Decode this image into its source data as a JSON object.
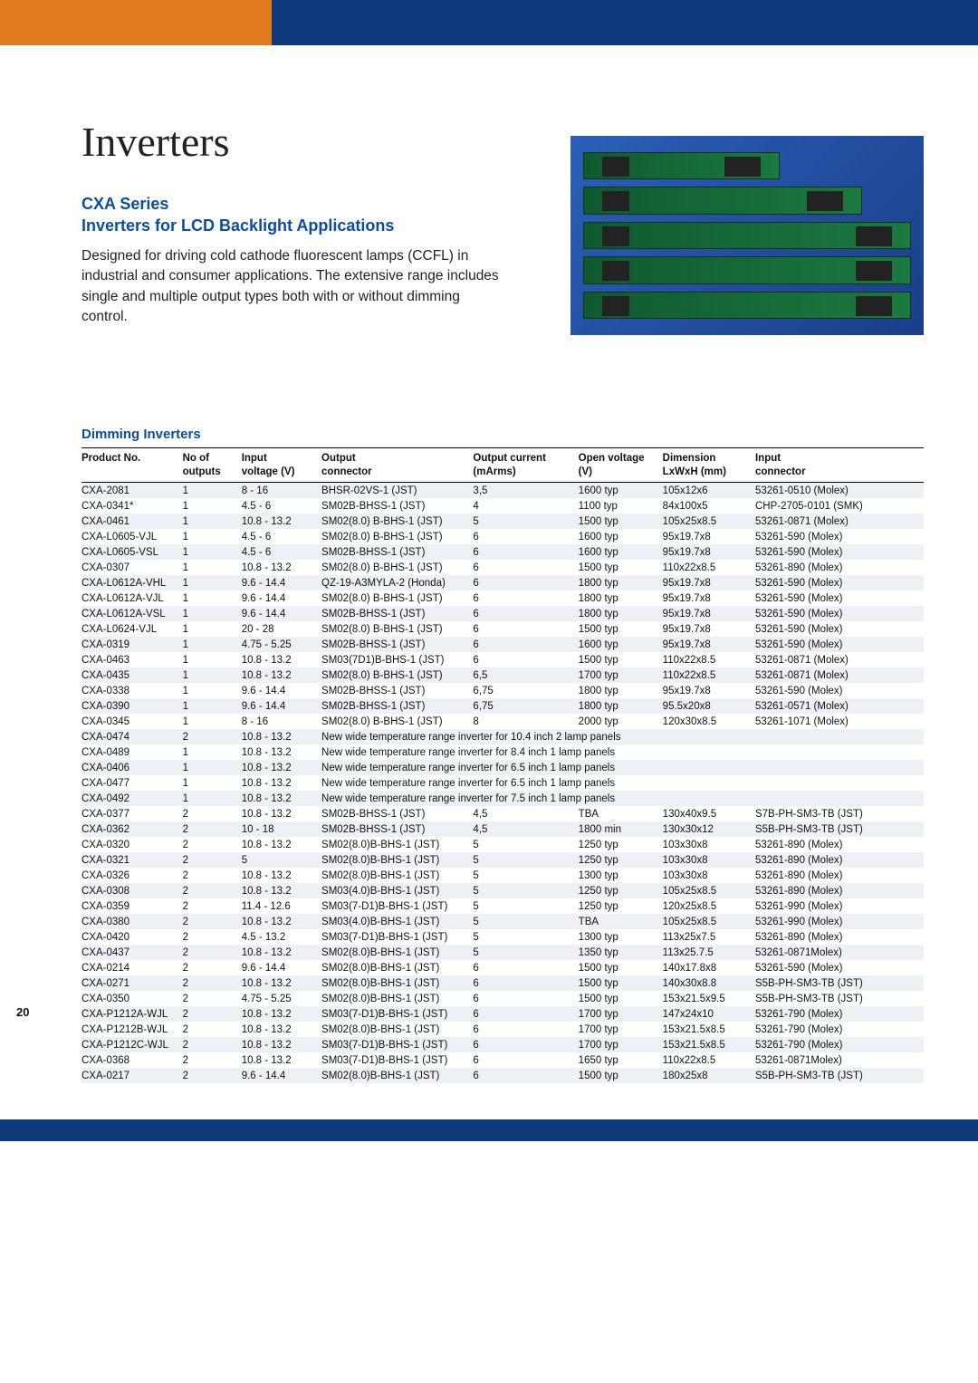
{
  "page_number": "20",
  "title": "Inverters",
  "subtitle_line1": "CXA Series",
  "subtitle_line2": "Inverters for LCD Backlight Applications",
  "description": "Designed for driving cold cathode fluorescent lamps (CCFL) in industrial and consumer applications. The extensive range includes single and multiple output types both with or without dimming control.",
  "section_heading": "Dimming Inverters",
  "colors": {
    "accent_blue": "#0a4da3",
    "bar_navy": "#0c3a7a",
    "bar_orange": "#e07a1f",
    "row_stripe": "#edf1f6"
  },
  "table": {
    "header": [
      {
        "l1": "Product No.",
        "l2": ""
      },
      {
        "l1": "No of",
        "l2": "outputs"
      },
      {
        "l1": "Input",
        "l2": "voltage (V)"
      },
      {
        "l1": "Output",
        "l2": "connector"
      },
      {
        "l1": "Output current",
        "l2": "(mArms)"
      },
      {
        "l1": "Open voltage",
        "l2": "(V)"
      },
      {
        "l1": "Dimension",
        "l2": "LxWxH (mm)"
      },
      {
        "l1": "Input",
        "l2": "connector"
      }
    ],
    "rows": [
      [
        "CXA-2081",
        "1",
        "8 - 16",
        "BHSR-02VS-1 (JST)",
        "3,5",
        "1600 typ",
        "105x12x6",
        "53261-0510 (Molex)"
      ],
      [
        "CXA-0341*",
        "1",
        "4.5 - 6",
        "SM02B-BHSS-1 (JST)",
        "4",
        "1100 typ",
        "84x100x5",
        "CHP-2705-0101 (SMK)"
      ],
      [
        "CXA-0461",
        "1",
        "10.8 - 13.2",
        "SM02(8.0) B-BHS-1 (JST)",
        "5",
        "1500 typ",
        "105x25x8.5",
        "53261-0871 (Molex)"
      ],
      [
        "CXA-L0605-VJL",
        "1",
        "4.5 - 6",
        "SM02(8.0) B-BHS-1 (JST)",
        "6",
        "1600 typ",
        "95x19.7x8",
        "53261-590 (Molex)"
      ],
      [
        "CXA-L0605-VSL",
        "1",
        "4.5 - 6",
        "SM02B-BHSS-1 (JST)",
        "6",
        "1600 typ",
        "95x19.7x8",
        "53261-590 (Molex)"
      ],
      [
        "CXA-0307",
        "1",
        "10.8 - 13.2",
        "SM02(8.0) B-BHS-1 (JST)",
        "6",
        "1500 typ",
        "110x22x8.5",
        "53261-890 (Molex)"
      ],
      [
        "CXA-L0612A-VHL",
        "1",
        "9.6 - 14.4",
        "QZ-19-A3MYLA-2 (Honda)",
        "6",
        "1800 typ",
        "95x19.7x8",
        "53261-590 (Molex)"
      ],
      [
        "CXA-L0612A-VJL",
        "1",
        "9.6 - 14.4",
        "SM02(8.0) B-BHS-1 (JST)",
        "6",
        "1800 typ",
        "95x19.7x8",
        "53261-590 (Molex)"
      ],
      [
        "CXA-L0612A-VSL",
        "1",
        "9.6 - 14.4",
        "SM02B-BHSS-1 (JST)",
        "6",
        "1800 typ",
        "95x19.7x8",
        "53261-590 (Molex)"
      ],
      [
        "CXA-L0624-VJL",
        "1",
        "20 - 28",
        "SM02(8.0) B-BHS-1 (JST)",
        "6",
        "1500 typ",
        "95x19.7x8",
        "53261-590 (Molex)"
      ],
      [
        "CXA-0319",
        "1",
        "4.75 - 5.25",
        "SM02B-BHSS-1 (JST)",
        "6",
        "1600 typ",
        "95x19.7x8",
        "53261-590 (Molex)"
      ],
      [
        "CXA-0463",
        "1",
        "10.8 - 13.2",
        "SM03(7D1)B-BHS-1 (JST)",
        "6",
        "1500 typ",
        "110x22x8.5",
        "53261-0871 (Molex)"
      ],
      [
        "CXA-0435",
        "1",
        "10.8 - 13.2",
        "SM02(8.0) B-BHS-1 (JST)",
        "6,5",
        "1700 typ",
        "110x22x8.5",
        "53261-0871 (Molex)"
      ],
      [
        "CXA-0338",
        "1",
        "9.6 - 14.4",
        "SM02B-BHSS-1 (JST)",
        "6,75",
        "1800 typ",
        "95x19.7x8",
        "53261-590 (Molex)"
      ],
      [
        "CXA-0390",
        "1",
        "9.6 - 14.4",
        "SM02B-BHSS-1 (JST)",
        "6,75",
        "1800 typ",
        "95.5x20x8",
        "53261-0571 (Molex)"
      ],
      [
        "CXA-0345",
        "1",
        "8 - 16",
        "SM02(8.0) B-BHS-1 (JST)",
        "8",
        "2000 typ",
        "120x30x8.5",
        "53261-1071 (Molex)"
      ],
      [
        "CXA-0474",
        "2",
        "10.8 - 13.2",
        {
          "note": "New wide temperature range inverter for 10.4 inch 2 lamp panels"
        }
      ],
      [
        "CXA-0489",
        "1",
        "10.8 - 13.2",
        {
          "note": "New wide temperature range inverter for 8.4 inch 1 lamp panels"
        }
      ],
      [
        "CXA-0406",
        "1",
        "10.8 - 13.2",
        {
          "note": "New wide temperature range inverter for 6.5 inch 1 lamp panels"
        }
      ],
      [
        "CXA-0477",
        "1",
        "10.8 - 13.2",
        {
          "note": "New wide temperature range inverter for 6.5 inch 1 lamp panels"
        }
      ],
      [
        "CXA-0492",
        "1",
        "10.8 - 13.2",
        {
          "note": "New wide temperature range inverter for 7.5 inch 1 lamp panels"
        }
      ],
      [
        "CXA-0377",
        "2",
        "10.8 - 13.2",
        "SM02B-BHSS-1 (JST)",
        "4,5",
        "TBA",
        "130x40x9.5",
        "S7B-PH-SM3-TB (JST)"
      ],
      [
        "CXA-0362",
        "2",
        "10 - 18",
        "SM02B-BHSS-1 (JST)",
        "4,5",
        "1800 min",
        "130x30x12",
        "S5B-PH-SM3-TB (JST)"
      ],
      [
        "CXA-0320",
        "2",
        "10.8 - 13.2",
        "SM02(8.0)B-BHS-1 (JST)",
        "5",
        "1250 typ",
        "103x30x8",
        "53261-890 (Molex)"
      ],
      [
        "CXA-0321",
        "2",
        "5",
        "SM02(8.0)B-BHS-1 (JST)",
        "5",
        "1250 typ",
        "103x30x8",
        "53261-890 (Molex)"
      ],
      [
        "CXA-0326",
        "2",
        "10.8 - 13.2",
        "SM02(8.0)B-BHS-1 (JST)",
        "5",
        "1300 typ",
        "103x30x8",
        "53261-890 (Molex)"
      ],
      [
        "CXA-0308",
        "2",
        "10.8 - 13.2",
        "SM03(4.0)B-BHS-1 (JST)",
        "5",
        "1250 typ",
        "105x25x8.5",
        "53261-890 (Molex)"
      ],
      [
        "CXA-0359",
        "2",
        "11.4 - 12.6",
        "SM03(7-D1)B-BHS-1 (JST)",
        "5",
        "1250 typ",
        "120x25x8.5",
        "53261-990 (Molex)"
      ],
      [
        "CXA-0380",
        "2",
        "10.8 - 13.2",
        "SM03(4.0)B-BHS-1 (JST)",
        "5",
        "TBA",
        "105x25x8.5",
        "53261-990 (Molex)"
      ],
      [
        "CXA-0420",
        "2",
        "4.5 - 13.2",
        "SM03(7-D1)B-BHS-1 (JST)",
        "5",
        "1300 typ",
        "113x25x7.5",
        "53261-890 (Molex)"
      ],
      [
        "CXA-0437",
        "2",
        "10.8 - 13.2",
        "SM02(8.0)B-BHS-1 (JST)",
        "5",
        "1350 typ",
        "113x25.7.5",
        "53261-0871Molex)"
      ],
      [
        "CXA-0214",
        "2",
        "9.6 - 14.4",
        "SM02(8.0)B-BHS-1 (JST)",
        "6",
        "1500 typ",
        "140x17.8x8",
        "53261-590 (Molex)"
      ],
      [
        "CXA-0271",
        "2",
        "10.8 - 13.2",
        "SM02(8.0)B-BHS-1 (JST)",
        "6",
        "1500 typ",
        "140x30x8.8",
        "S5B-PH-SM3-TB (JST)"
      ],
      [
        "CXA-0350",
        "2",
        "4.75 - 5.25",
        "SM02(8.0)B-BHS-1 (JST)",
        "6",
        "1500 typ",
        "153x21.5x9.5",
        "S5B-PH-SM3-TB (JST)"
      ],
      [
        "CXA-P1212A-WJL",
        "2",
        "10.8 - 13.2",
        "SM03(7-D1)B-BHS-1 (JST)",
        "6",
        "1700 typ",
        "147x24x10",
        "53261-790 (Molex)"
      ],
      [
        "CXA-P1212B-WJL",
        "2",
        "10.8 - 13.2",
        "SM02(8.0)B-BHS-1 (JST)",
        "6",
        "1700 typ",
        "153x21.5x8.5",
        "53261-790 (Molex)"
      ],
      [
        "CXA-P1212C-WJL",
        "2",
        "10.8 - 13.2",
        "SM03(7-D1)B-BHS-1 (JST)",
        "6",
        "1700 typ",
        "153x21.5x8.5",
        "53261-790 (Molex)"
      ],
      [
        "CXA-0368",
        "2",
        "10.8 - 13.2",
        "SM03(7-D1)B-BHS-1 (JST)",
        "6",
        "1650 typ",
        "110x22x8.5",
        "53261-0871Molex)"
      ],
      [
        "CXA-0217",
        "2",
        "9.6 - 14.4",
        "SM02(8.0)B-BHS-1 (JST)",
        "6",
        "1500 typ",
        "180x25x8",
        "S5B-PH-SM3-TB (JST)"
      ]
    ]
  }
}
